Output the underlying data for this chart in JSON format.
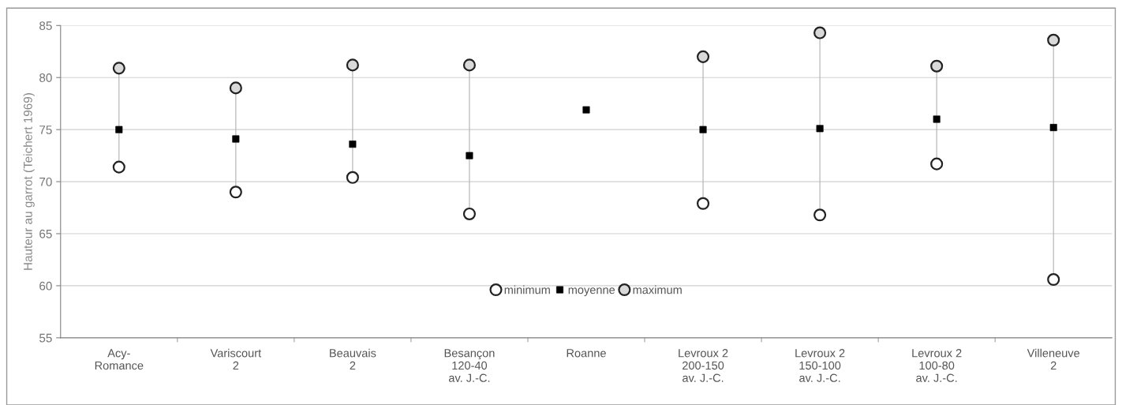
{
  "chart_data": {
    "type": "scatter",
    "ylabel": "Hauteur au garrot (Teichert 1969)",
    "categories": [
      "Acy-\nRomance",
      "Variscourt\n2",
      "Beauvais\n2",
      "Besançon\n120-40\nav. J.-C.",
      "Roanne",
      "Levroux 2\n200-150\nav. J.-C.",
      "Levroux 2\n150-100\nav. J.-C.",
      "Levroux 2\n100-80\nav. J.-C.",
      "Villeneuve\n2"
    ],
    "series": [
      {
        "name": "minimum",
        "color": "#ffffff",
        "marker": "circle",
        "values": [
          71.4,
          69.0,
          70.4,
          66.9,
          null,
          67.9,
          66.8,
          71.7,
          60.6
        ]
      },
      {
        "name": "moyenne",
        "color": "#000000",
        "marker": "square",
        "values": [
          75.0,
          74.1,
          73.6,
          72.5,
          76.9,
          75.0,
          75.1,
          76.0,
          75.2
        ]
      },
      {
        "name": "maximum",
        "color": "#d9d9d9",
        "marker": "circle",
        "values": [
          80.9,
          79.0,
          81.2,
          81.2,
          null,
          82.0,
          84.3,
          81.1,
          83.6
        ]
      }
    ],
    "ylim": [
      55,
      85
    ],
    "yticks": [
      55,
      60,
      65,
      70,
      75,
      80,
      85
    ],
    "grid": "y",
    "legend": "bottom"
  }
}
